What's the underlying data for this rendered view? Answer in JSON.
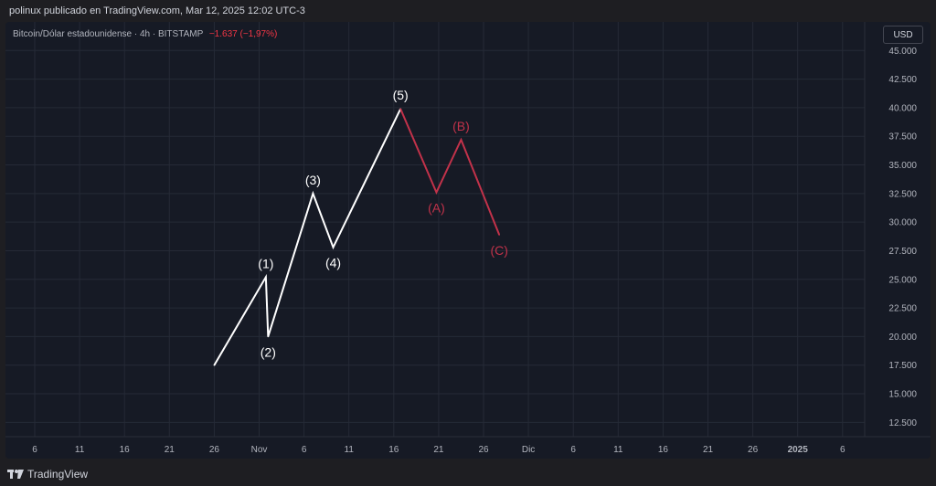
{
  "header": {
    "published": "polinux publicado en TradingView.com, Mar 12, 2025 12:02 UTC-3"
  },
  "legend": {
    "symbol": "Bitcoin/Dólar estadounidense · 4h · BITSTAMP",
    "change": "−1.637 (−1,97%)"
  },
  "currency_button": "USD",
  "footer": {
    "brand": "TradingView",
    "logo_icon": "tradingview-logo-icon"
  },
  "colors": {
    "impulse": "#ffffff",
    "correction": "#c2324a",
    "grid": "#252a36",
    "background": "#161a25"
  },
  "chart_data": {
    "type": "line",
    "title": "",
    "xlabel": "",
    "ylabel": "",
    "ylim": [
      11250,
      47500
    ],
    "y_ticks": [
      "12.500",
      "15.000",
      "17.500",
      "20.000",
      "22.500",
      "25.000",
      "27.500",
      "30.000",
      "32.500",
      "35.000",
      "37.500",
      "40.000",
      "42.500",
      "45.000"
    ],
    "x_ticks": [
      "6",
      "11",
      "16",
      "21",
      "26",
      "Nov",
      "6",
      "11",
      "16",
      "21",
      "26",
      "Dic",
      "6",
      "11",
      "16",
      "21",
      "26",
      "2025",
      "6"
    ],
    "x_tick_bold_index": 17,
    "grid": true,
    "series": [
      {
        "role": "impulse",
        "points": [
          {
            "x": 4.0,
            "y": 17500
          },
          {
            "x": 5.15,
            "y": 25200
          },
          {
            "x": 5.2,
            "y": 20000
          },
          {
            "x": 6.2,
            "y": 32500
          },
          {
            "x": 6.65,
            "y": 27800
          },
          {
            "x": 8.15,
            "y": 39900
          }
        ],
        "labels": [
          {
            "text": "(1)",
            "point": 1,
            "pos": "above"
          },
          {
            "text": "(2)",
            "point": 2,
            "pos": "below"
          },
          {
            "text": "(3)",
            "point": 3,
            "pos": "above"
          },
          {
            "text": "(4)",
            "point": 4,
            "pos": "below"
          },
          {
            "text": "(5)",
            "point": 5,
            "pos": "above"
          }
        ]
      },
      {
        "role": "correction",
        "points": [
          {
            "x": 8.15,
            "y": 39900
          },
          {
            "x": 8.95,
            "y": 32600
          },
          {
            "x": 9.5,
            "y": 37200
          },
          {
            "x": 10.35,
            "y": 28900
          }
        ],
        "labels": [
          {
            "text": "(A)",
            "point": 1,
            "pos": "below"
          },
          {
            "text": "(B)",
            "point": 2,
            "pos": "above"
          },
          {
            "text": "(C)",
            "point": 3,
            "pos": "below"
          }
        ]
      }
    ]
  }
}
